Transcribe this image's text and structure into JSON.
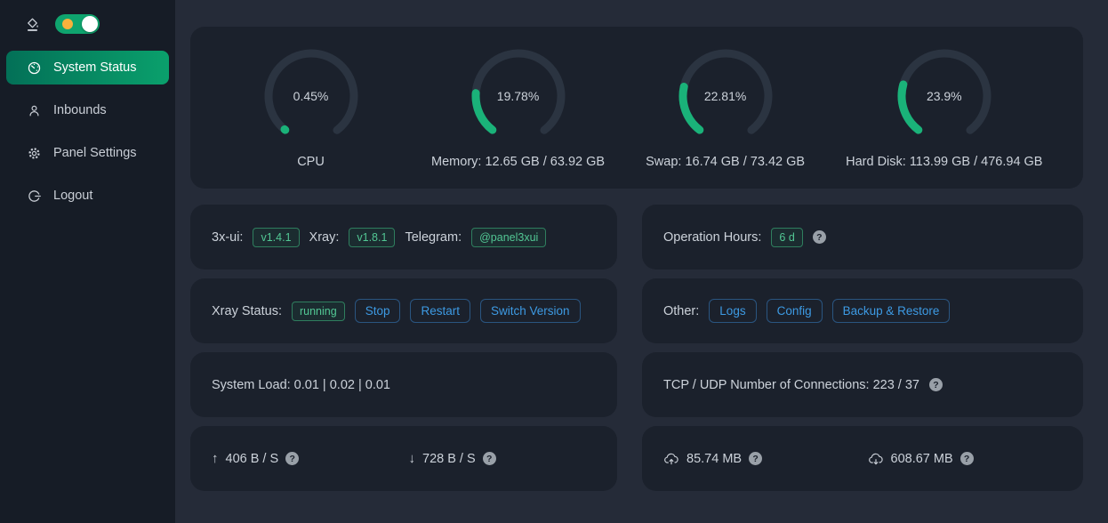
{
  "sidebar": {
    "theme_toggle": {
      "state": "on"
    },
    "items": [
      {
        "label": "System Status",
        "icon": "dashboard-icon",
        "active": true
      },
      {
        "label": "Inbounds",
        "icon": "user-icon",
        "active": false
      },
      {
        "label": "Panel Settings",
        "icon": "gear-icon",
        "active": false
      },
      {
        "label": "Logout",
        "icon": "logout-icon",
        "active": false
      }
    ]
  },
  "gauges": [
    {
      "percent": 0.45,
      "display": "0.45%",
      "label": "CPU"
    },
    {
      "percent": 19.78,
      "display": "19.78%",
      "label": "Memory: 12.65 GB / 63.92 GB"
    },
    {
      "percent": 22.81,
      "display": "22.81%",
      "label": "Swap: 16.74 GB / 73.42 GB"
    },
    {
      "percent": 23.9,
      "display": "23.9%",
      "label": "Hard Disk: 113.99 GB / 476.94 GB"
    }
  ],
  "cards": {
    "versions": {
      "app_label": "3x-ui:",
      "app_version": "v1.4.1",
      "xray_label": "Xray:",
      "xray_version": "v1.8.1",
      "telegram_label": "Telegram:",
      "telegram_value": "@panel3xui"
    },
    "operation": {
      "label": "Operation Hours:",
      "value": "6 d",
      "help_glyph": "?"
    },
    "xray": {
      "label": "Xray Status:",
      "status": "running",
      "buttons": [
        "Stop",
        "Restart",
        "Switch Version"
      ]
    },
    "other": {
      "label": "Other:",
      "buttons": [
        "Logs",
        "Config",
        "Backup & Restore"
      ]
    },
    "load": {
      "text": "System Load: 0.01 | 0.02 | 0.01"
    },
    "connections": {
      "text": "TCP / UDP Number of Connections: 223 / 37",
      "help_glyph": "?"
    },
    "net": {
      "up": "406 B / S",
      "down": "728 B / S",
      "up_arrow": "↑",
      "down_arrow": "↓",
      "help_glyph": "?"
    },
    "traffic": {
      "sent": "85.74 MB",
      "received": "608.67 MB",
      "help_glyph": "?"
    }
  },
  "colors": {
    "accent_green": "#1ab279",
    "gauge_track": "#2b3441",
    "active_item_bg": "#0aa06c",
    "page_bg": "#252b38",
    "card_bg": "#1b212c",
    "sidebar_bg": "#161c26",
    "tag_green_text": "#52c794",
    "button_blue_text": "#3d9ae3",
    "toggle_green": "#0fa46e",
    "toggle_sun": "#f8b13c"
  }
}
